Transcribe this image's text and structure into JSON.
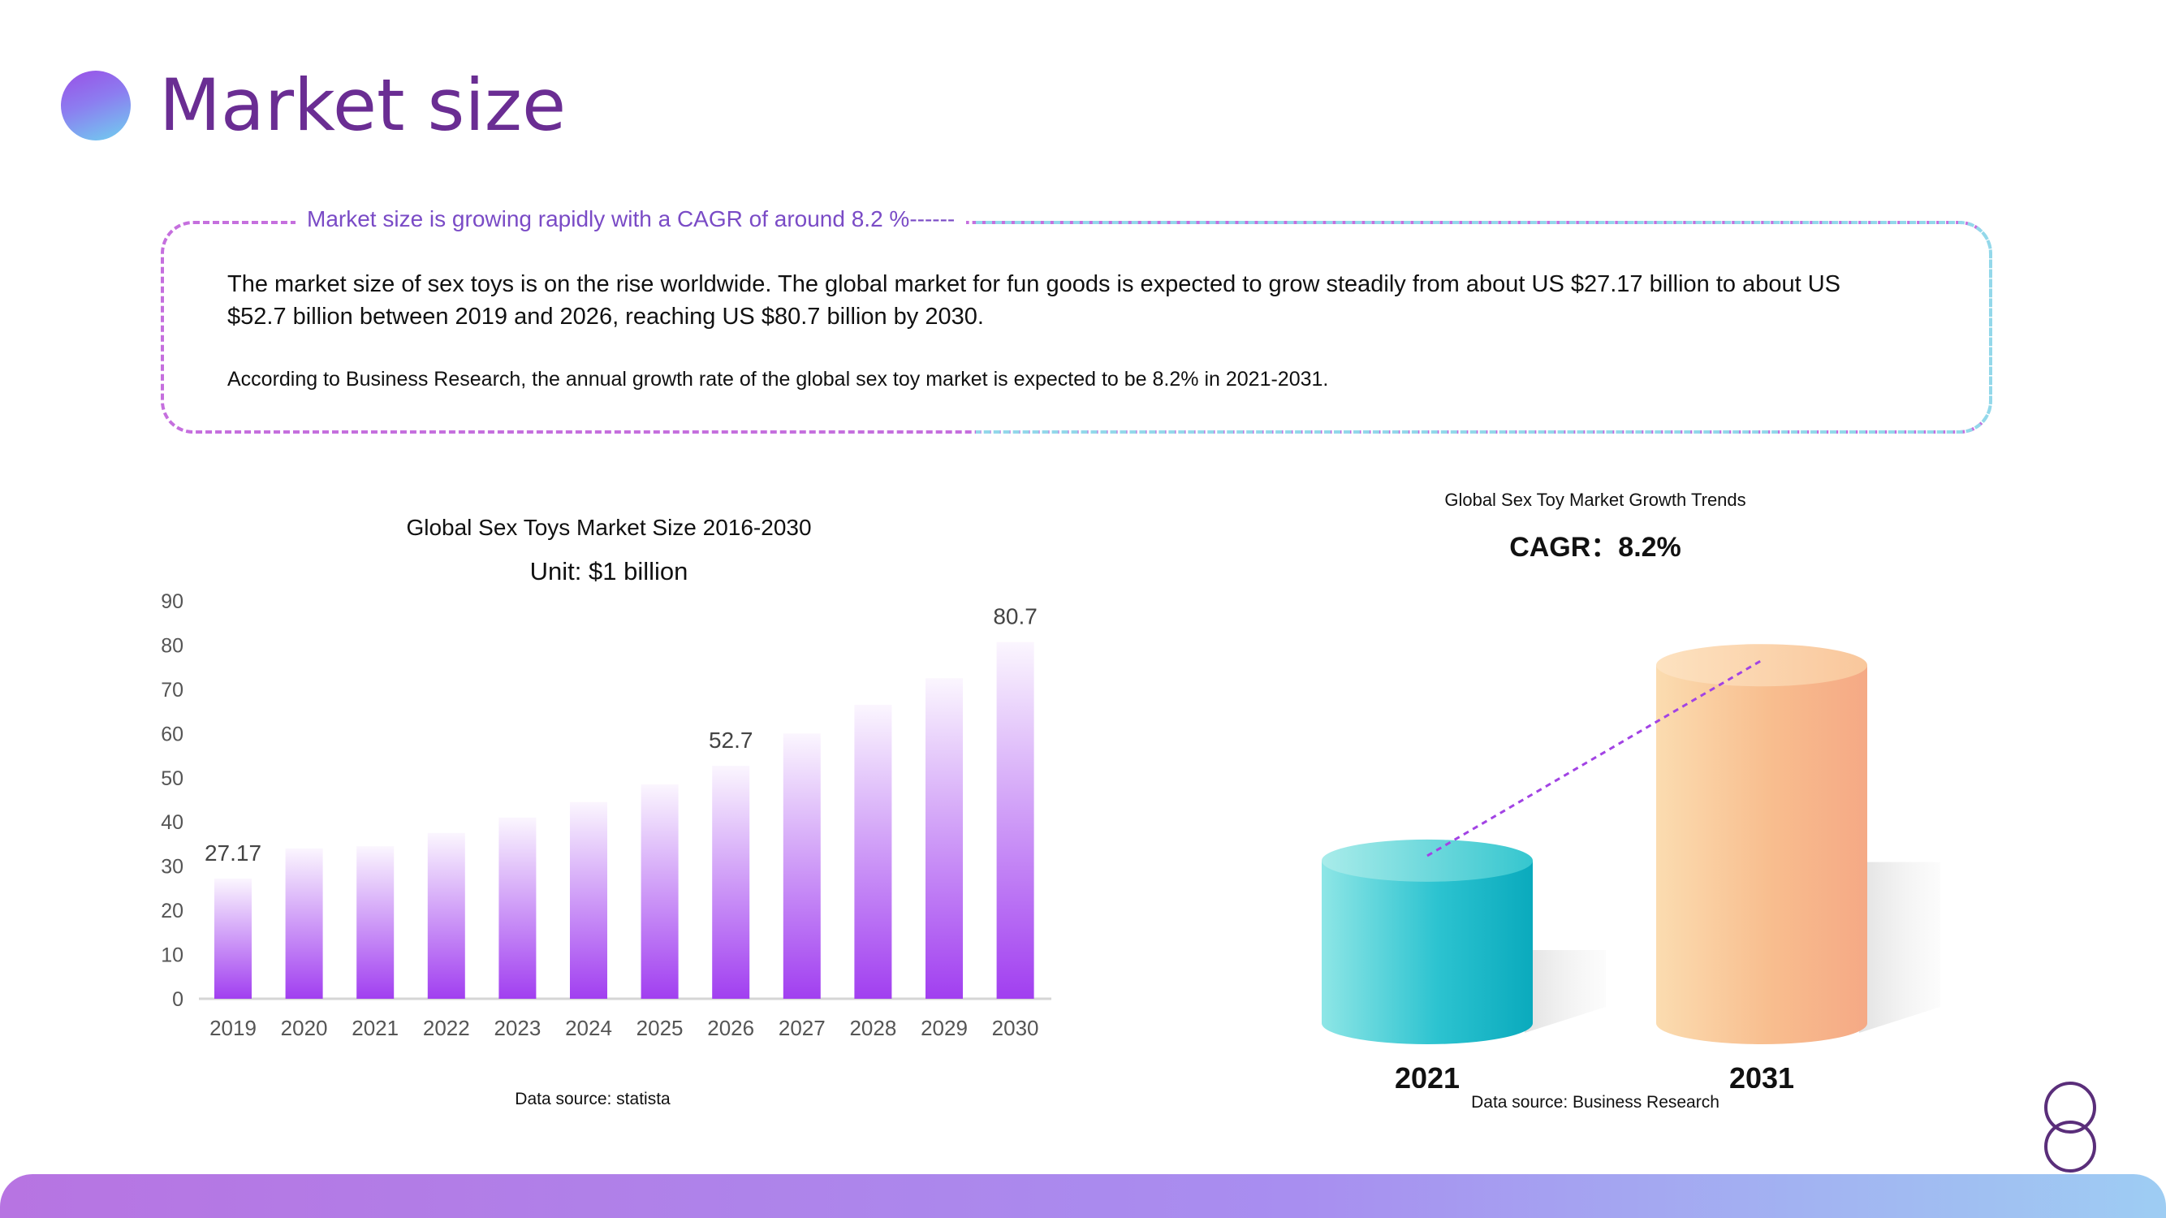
{
  "page": {
    "title": "Market size"
  },
  "summary": {
    "heading": "Market size is growing rapidly with a CAGR of around 8.2 %------",
    "paragraph1": "The market size of sex toys is on the rise worldwide. The global market for fun goods is expected to grow steadily from about US $27.17 billion to about US $52.7 billion between 2019 and 2026, reaching US $80.7 billion by 2030.",
    "paragraph2": "According to Business Research, the annual growth rate of the global sex toy market is expected to be 8.2% in 2021-2031."
  },
  "chart_data": [
    {
      "type": "bar",
      "title": "Global Sex Toys Market Size 2016-2030",
      "subtitle": "Unit: $1 billion",
      "source": "Data source: statista",
      "categories": [
        "2019",
        "2020",
        "2021",
        "2022",
        "2023",
        "2024",
        "2025",
        "2026",
        "2027",
        "2028",
        "2029",
        "2030"
      ],
      "values": [
        27.17,
        34,
        34.5,
        37.5,
        41,
        44.5,
        48.5,
        52.7,
        60,
        66.5,
        72.5,
        80.7
      ],
      "data_labels": [
        "27.17",
        "",
        "",
        "",
        "",
        "",
        "",
        "52.7",
        "",
        "",
        "",
        "80.7"
      ],
      "yticks": [
        "0",
        "10",
        "20",
        "30",
        "40",
        "50",
        "60",
        "70",
        "80",
        "90"
      ],
      "ylim": [
        0,
        90
      ],
      "grid": false,
      "colors": {
        "bar_top": "#fbf6fe",
        "bar_bottom": "#a13ff0",
        "tick": "#555555",
        "axis": "#d5d5d5"
      }
    },
    {
      "type": "bar",
      "style": "cylinder",
      "title": "Global Sex Toy Market Growth Trends",
      "subtitle": "CAGR：8.2%",
      "source": "Data source: Business Research",
      "categories": [
        "2021",
        "2031"
      ],
      "values": [
        34.5,
        76
      ],
      "colors": {
        "first": "#14b4c6",
        "second": "#f6b088",
        "trend_line": "#a243e4"
      }
    }
  ],
  "decor": {
    "ring_icon": "double-ring-icon",
    "title_dot": "gradient-circle"
  }
}
